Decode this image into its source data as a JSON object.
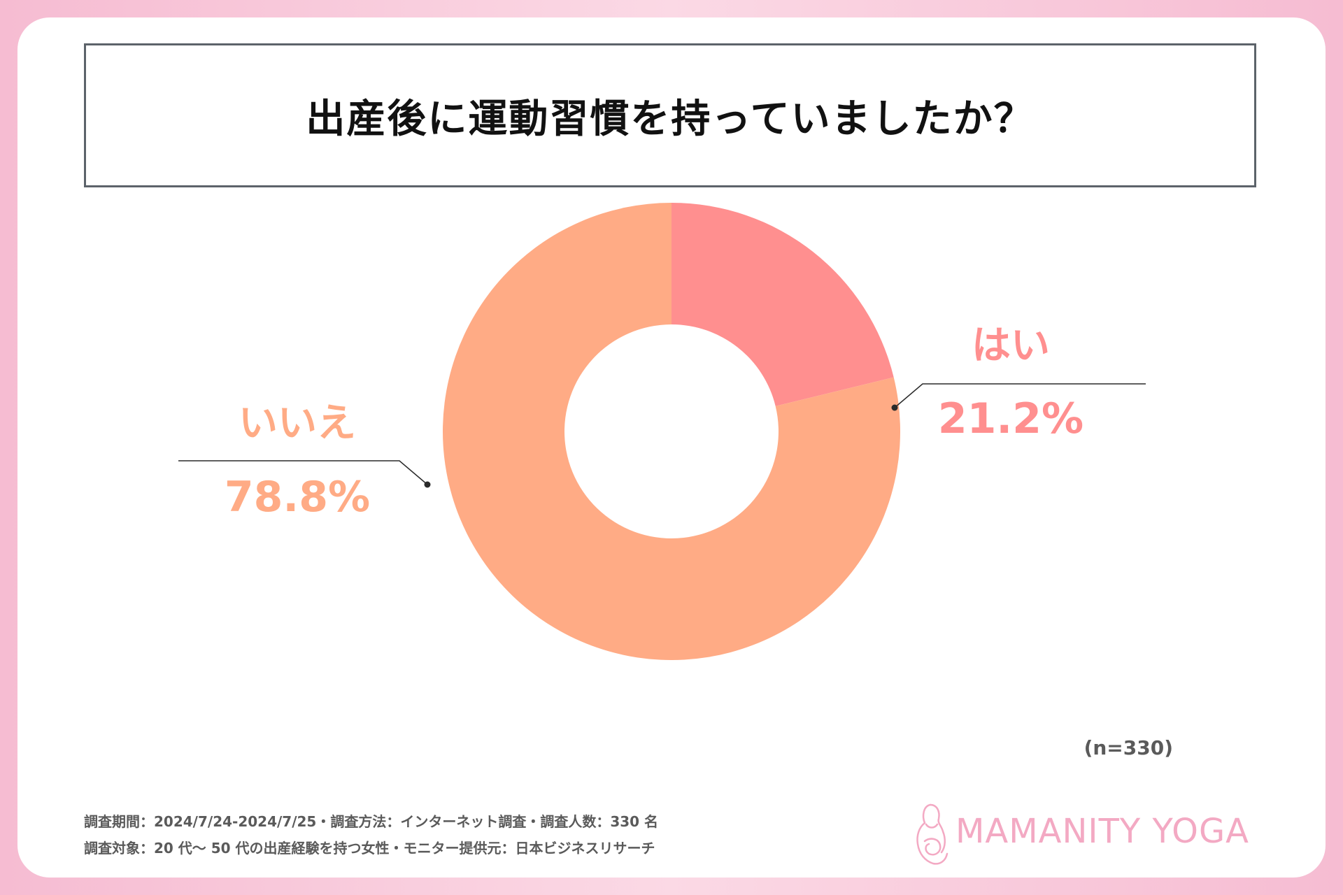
{
  "title": "出産後に運動習慣を持っていましたか？",
  "colors": {
    "yes": "#ff8f8f",
    "no": "#ffab85",
    "logo": "#f3a9c3",
    "leader": "#2a2a2a"
  },
  "chart_data": {
    "type": "pie",
    "variant": "donut",
    "title": "出産後に運動習慣を持っていましたか？",
    "slices": [
      {
        "label": "はい",
        "value": 21.2,
        "display": "21.2%",
        "color": "#ff8f8f"
      },
      {
        "label": "いいえ",
        "value": 78.8,
        "display": "78.8%",
        "color": "#ffab85"
      }
    ],
    "sample_size": "(n=330)",
    "legend": "none"
  },
  "footnotes": {
    "line1": "調査期間：2024/7/24-2024/7/25・調査方法：インターネット調査・調査人数：330 名",
    "line2": "調査対象：20 代～ 50 代の出産経験を持つ女性・モニター提供元：日本ビジネスリサーチ"
  },
  "logo": {
    "text": "MAMANITY YOGA",
    "icon": "mother-silhouette-icon"
  }
}
